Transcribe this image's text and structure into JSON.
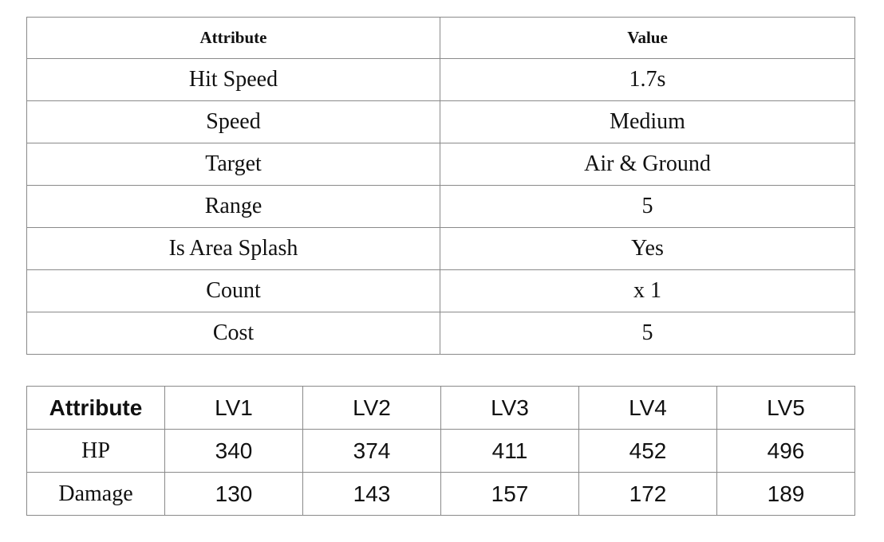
{
  "attributes_table": {
    "header": {
      "attribute": "Attribute",
      "value": "Value"
    },
    "rows": [
      {
        "attribute": "Hit Speed",
        "value": "1.7s"
      },
      {
        "attribute": "Speed",
        "value": "Medium"
      },
      {
        "attribute": "Target",
        "value": "Air & Ground"
      },
      {
        "attribute": "Range",
        "value": "5"
      },
      {
        "attribute": "Is Area Splash",
        "value": "Yes"
      },
      {
        "attribute": "Count",
        "value": "x 1"
      },
      {
        "attribute": "Cost",
        "value": "5"
      }
    ]
  },
  "level_table": {
    "header": [
      "Attribute",
      "LV1",
      "LV2",
      "LV3",
      "LV4",
      "LV5"
    ],
    "rows": [
      {
        "label": "HP",
        "values": [
          "340",
          "374",
          "411",
          "452",
          "496"
        ]
      },
      {
        "label": "Damage",
        "values": [
          "130",
          "143",
          "157",
          "172",
          "189"
        ]
      }
    ]
  }
}
